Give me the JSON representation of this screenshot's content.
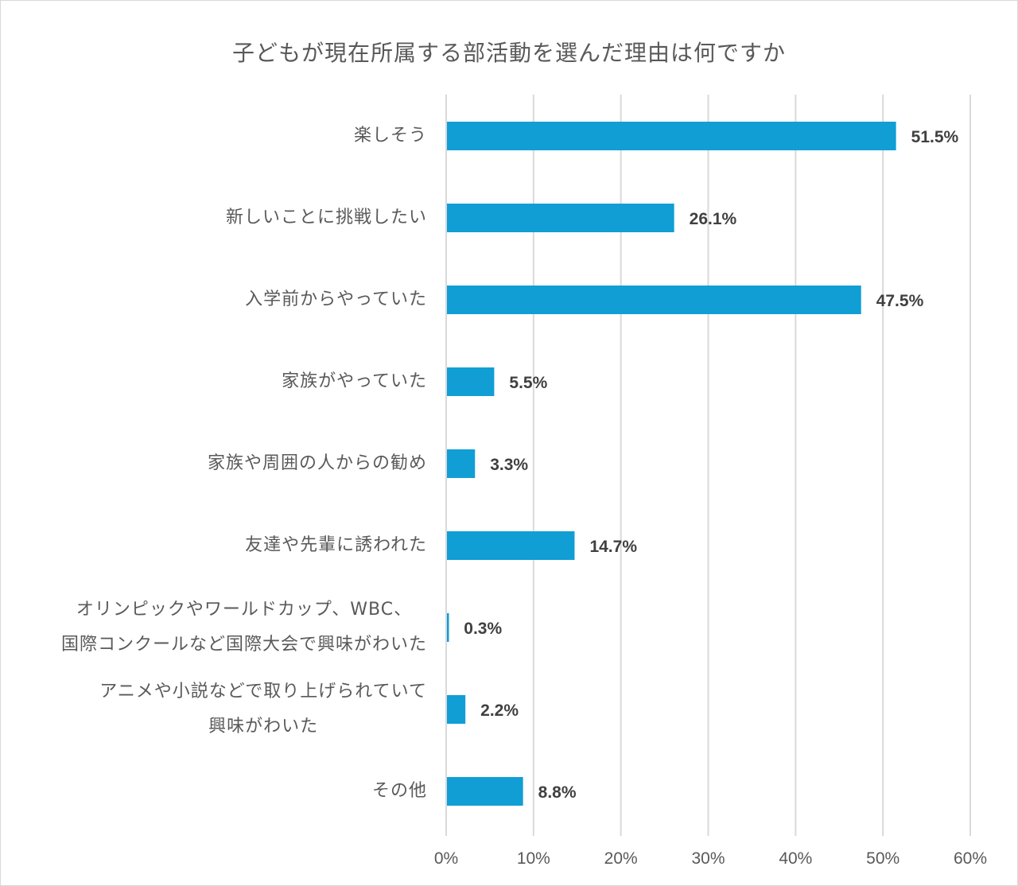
{
  "chart_data": {
    "type": "bar",
    "orientation": "horizontal",
    "title": "子どもが現在所属する部活動を選んだ理由は何ですか",
    "categories": [
      "楽しそう",
      "新しいことに挑戦したい",
      "入学前からやっていた",
      "家族がやっていた",
      "家族や周囲の人からの勧め",
      "友達や先輩に誘われた",
      "オリンピックやワールドカップ、WBC、\n国際コンクールなど国際大会で興味がわいた",
      "アニメや小説などで取り上げられていて\n興味がわいた",
      "その他"
    ],
    "values": [
      51.5,
      26.1,
      47.5,
      5.5,
      3.3,
      14.7,
      0.3,
      2.2,
      8.8
    ],
    "data_labels": [
      "51.5%",
      "26.1%",
      "47.5%",
      "5.5%",
      "3.3%",
      "14.7%",
      "0.3%",
      "2.2%",
      "8.8%"
    ],
    "xlim": [
      0,
      60
    ],
    "x_ticks": [
      "0%",
      "10%",
      "20%",
      "30%",
      "40%",
      "50%",
      "60%"
    ],
    "grid": "vertical",
    "legend": "none",
    "bar_color": "#109ed5"
  }
}
